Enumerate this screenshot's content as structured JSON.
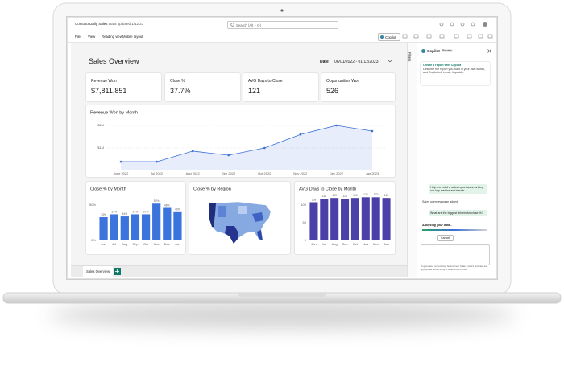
{
  "app": {
    "report_name": "Contoso Daily Sales",
    "updated": "Data updated 1/12/23",
    "search": "Search (Alt + Q)",
    "menu": [
      "File",
      "View",
      "Reading view",
      "Mobile layout"
    ],
    "copilot_button": "Copilot",
    "filters": "Filters"
  },
  "report": {
    "title": "Sales Overview",
    "date_label": "Date",
    "date_range": "06/01/2022 - 01/12/2023",
    "kpis": [
      {
        "label": "Revenue Won",
        "value": "$7,811,851"
      },
      {
        "label": "Close %",
        "value": "37.7%"
      },
      {
        "label": "AVG Days to Close",
        "value": "121"
      },
      {
        "label": "Opportunities Won",
        "value": "526"
      }
    ],
    "revenue_chart": {
      "type": "line",
      "title": "Revenue Won by Month",
      "categories": [
        "June 2022",
        "Jul 2022",
        "Aug 2022",
        "Sep 2022",
        "Oct 2022",
        "Nov 2022",
        "Dec 2022",
        "Jan 2023"
      ],
      "values": [
        390000,
        390000,
        860000,
        680000,
        1000000,
        1600000,
        2000000,
        1750000
      ],
      "color": "#3b6fd6",
      "ylim": [
        0,
        2300000
      ],
      "yticks": [
        {
          "value": 1000000,
          "label": "$1M"
        },
        {
          "value": 2000000,
          "label": "$2M"
        }
      ],
      "grid": true
    },
    "close_chart": {
      "type": "bar",
      "title": "Close % by Month",
      "categories": [
        "Jun",
        "Jul",
        "Aug",
        "Sep",
        "Oct",
        "Nov",
        "Dec",
        "Jan"
      ],
      "values": [
        33,
        37,
        34,
        37,
        37,
        52,
        46,
        40
      ],
      "value_labels": [
        "33%",
        "37%",
        "34%",
        "37%",
        "37%",
        "52%",
        "46%",
        "40%"
      ],
      "color": "#3b74dc",
      "ylim": [
        0,
        60
      ],
      "yticks": [
        {
          "value": 0,
          "label": "0%"
        },
        {
          "value": 50,
          "label": "50%"
        }
      ],
      "grid": false
    },
    "map": {
      "title": "Close % by Region"
    },
    "days_chart": {
      "type": "bar",
      "title": "AVG Days to Close by Month",
      "categories": [
        "Jun",
        "Jul",
        "Aug",
        "Sep",
        "Oct",
        "Nov",
        "Dec",
        "Jan"
      ],
      "values": [
        108,
        118,
        120,
        118,
        120,
        122,
        122,
        120
      ],
      "color": "#4b3fa8",
      "ylim": [
        0,
        130
      ],
      "yticks": [
        0,
        50,
        100
      ],
      "grid": false
    }
  },
  "tabs": [
    "Sales Overview"
  ],
  "copilot": {
    "title": "Copilot",
    "badge": "Preview",
    "intro_title": "Create a report with Copilot",
    "intro_text": "Describe the report you want in your own words, and Copilot will create it quickly.",
    "prompt_1": "Help me build a sales report summarizing our key metrics and trends",
    "result_1": "Sales overview page added",
    "prompt_2": "What are the biggest drivers for close %?",
    "status": "Analyzing your data...",
    "cancel": "Cancel",
    "disclaimer": "AI-generated content may be incorrect. Make sure it's accurate and appropriate before using it. Read terms of use"
  }
}
